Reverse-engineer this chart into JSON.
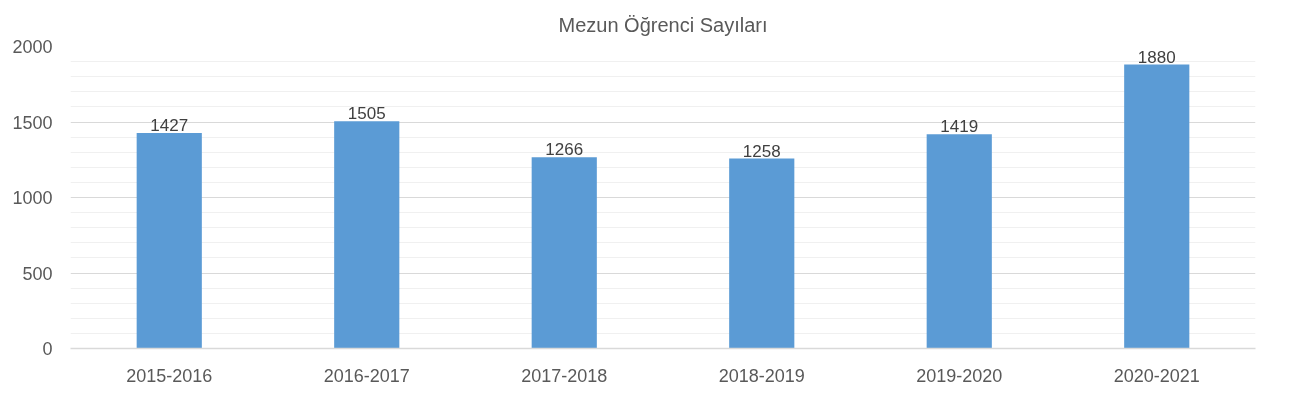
{
  "chart_data": {
    "type": "bar",
    "title": "Mezun Öğrenci Sayıları",
    "categories": [
      "2015-2016",
      "2016-2017",
      "2017-2018",
      "2018-2019",
      "2019-2020",
      "2020-2021"
    ],
    "values": [
      1427,
      1505,
      1266,
      1258,
      1419,
      1880
    ],
    "color": "#5b9bd5",
    "ylim": [
      0,
      2000
    ],
    "yticks": [
      0,
      500,
      1000,
      1500,
      2000
    ],
    "grid": "y",
    "data_labels": true
  }
}
